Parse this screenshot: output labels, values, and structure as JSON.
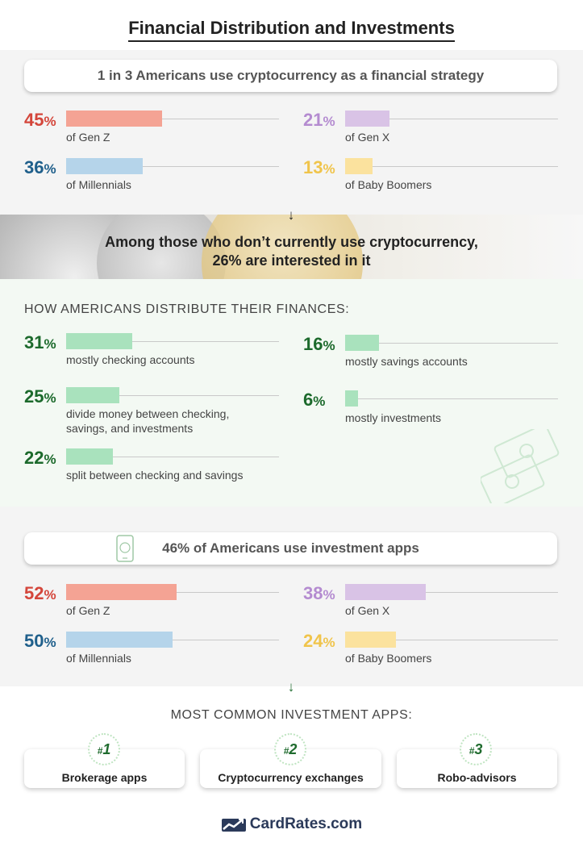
{
  "title": "Financial Distribution and Investments",
  "crypto": {
    "headline": "1 in 3 Americans use cryptocurrency as a financial strategy",
    "stats": [
      {
        "value": 45,
        "label": "of Gen Z",
        "color": "#f4a394",
        "text_color": "#d4463b"
      },
      {
        "value": 21,
        "label": "of Gen X",
        "color": "#d9c3e6",
        "text_color": "#b48bd0"
      },
      {
        "value": 36,
        "label": "of Millennials",
        "color": "#b5d4ea",
        "text_color": "#1f5f8b"
      },
      {
        "value": 13,
        "label": "of Baby Boomers",
        "color": "#fbe29e",
        "text_color": "#f0c44b"
      }
    ]
  },
  "interest": {
    "line1": "Among those who don’t currently use cryptocurrency,",
    "line2": "26% are interested in it"
  },
  "distribution": {
    "heading": "HOW AMERICANS DISTRIBUTE THEIR FINANCES:",
    "bar_color": "#a9e2bd",
    "text_color": "#1c6a2c",
    "stats": [
      {
        "value": 31,
        "label": "mostly checking accounts"
      },
      {
        "value": 16,
        "label": "mostly savings accounts"
      },
      {
        "value": 25,
        "label": "divide money between checking, savings, and investments",
        "label_lines": [
          "divide money between checking,",
          "savings, and investments"
        ]
      },
      {
        "value": 6,
        "label": "mostly investments"
      },
      {
        "value": 22,
        "label": "split between checking and savings"
      }
    ]
  },
  "apps": {
    "headline": "46% of Americans use investment apps",
    "stats": [
      {
        "value": 52,
        "label": "of Gen Z",
        "color": "#f4a394",
        "text_color": "#d4463b"
      },
      {
        "value": 38,
        "label": "of Gen X",
        "color": "#d9c3e6",
        "text_color": "#b48bd0"
      },
      {
        "value": 50,
        "label": "of Millennials",
        "color": "#b5d4ea",
        "text_color": "#1f5f8b"
      },
      {
        "value": 24,
        "label": "of Baby Boomers",
        "color": "#fbe29e",
        "text_color": "#f0c44b"
      }
    ]
  },
  "common_apps": {
    "heading": "MOST COMMON INVESTMENT APPS:",
    "items": [
      {
        "rank": "1",
        "label": "Brokerage apps"
      },
      {
        "rank": "2",
        "label": "Cryptocurrency exchanges"
      },
      {
        "rank": "3",
        "label": "Robo-advisors"
      }
    ]
  },
  "footer": {
    "brand": "CardRates.com"
  },
  "chart_data": [
    {
      "type": "bar",
      "title": "1 in 3 Americans use cryptocurrency as a financial strategy",
      "categories": [
        "Gen Z",
        "Gen X",
        "Millennials",
        "Baby Boomers"
      ],
      "values": [
        45,
        21,
        36,
        13
      ],
      "ylim": [
        0,
        100
      ]
    },
    {
      "type": "bar",
      "title": "HOW AMERICANS DISTRIBUTE THEIR FINANCES:",
      "categories": [
        "mostly checking accounts",
        "mostly savings accounts",
        "divide money between checking, savings, and investments",
        "mostly investments",
        "split between checking and savings"
      ],
      "values": [
        31,
        16,
        25,
        6,
        22
      ],
      "ylim": [
        0,
        100
      ]
    },
    {
      "type": "bar",
      "title": "46% of Americans use investment apps",
      "categories": [
        "Gen Z",
        "Gen X",
        "Millennials",
        "Baby Boomers"
      ],
      "values": [
        52,
        38,
        50,
        24
      ],
      "ylim": [
        0,
        100
      ]
    }
  ]
}
